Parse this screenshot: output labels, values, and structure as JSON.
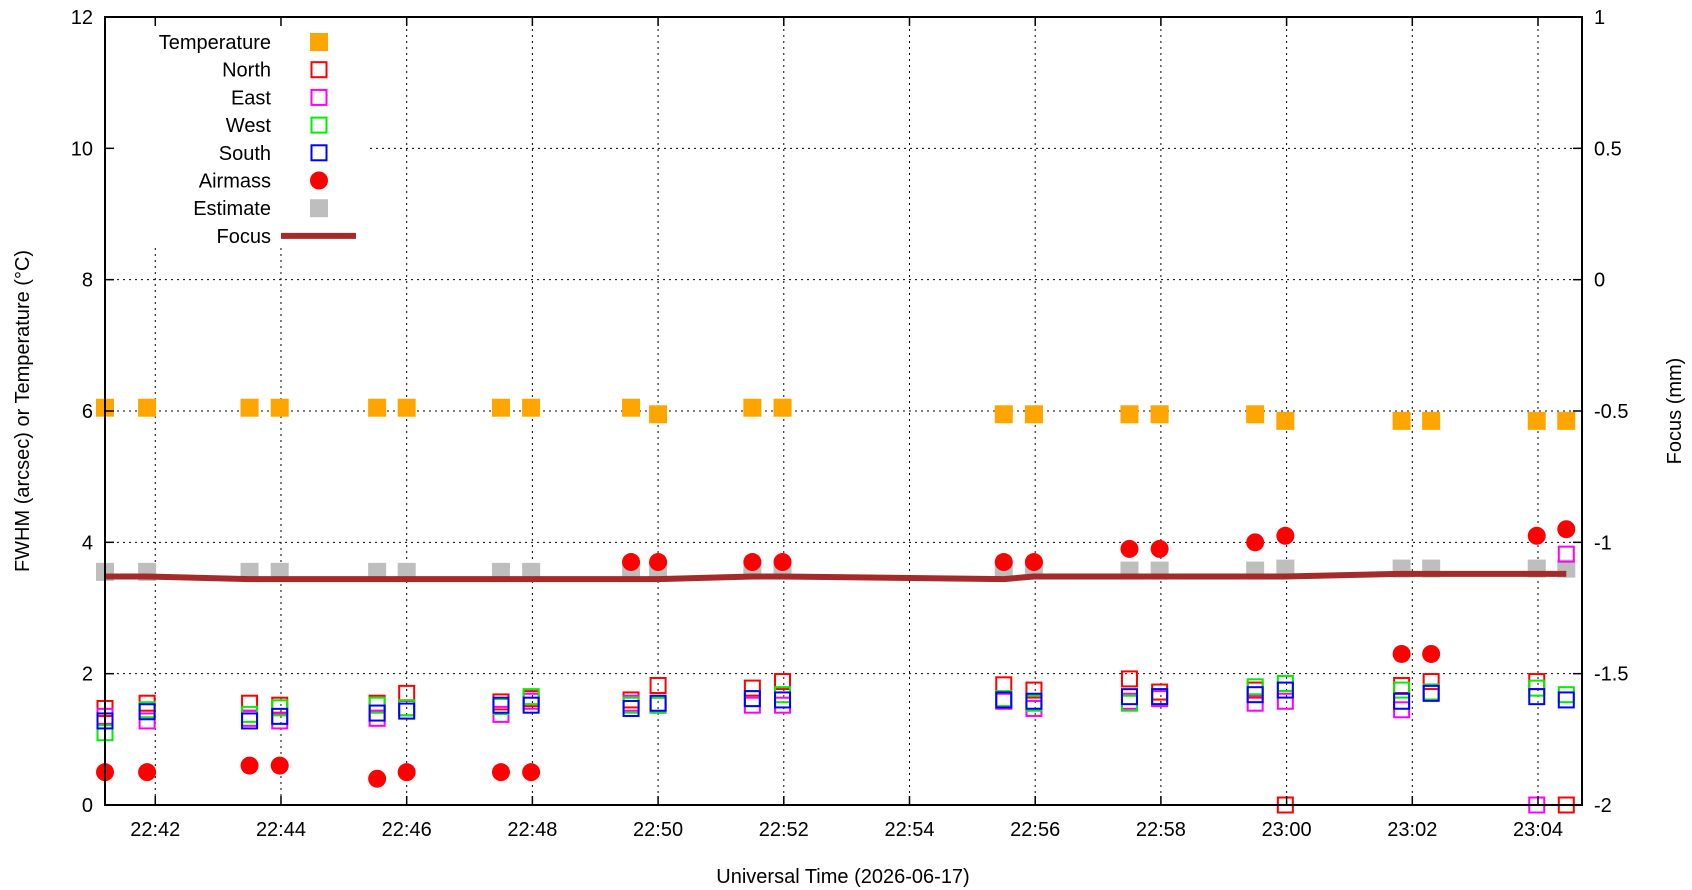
{
  "chart_data": {
    "type": "scatter",
    "xlabel": "Universal Time (2026-06-17)",
    "ylabel": "FWHM (arcsec) or Temperature (°C)",
    "y2label": "Focus (mm)",
    "xlim_minutes": [
      1361.2,
      1384.7
    ],
    "ylim": [
      0,
      12
    ],
    "y2lim": [
      -2,
      1
    ],
    "grid": true,
    "legend_position": "top-left",
    "x_ticks": [
      {
        "label": "22:42",
        "value": 1362
      },
      {
        "label": "22:44",
        "value": 1364
      },
      {
        "label": "22:46",
        "value": 1366
      },
      {
        "label": "22:48",
        "value": 1368
      },
      {
        "label": "22:50",
        "value": 1370
      },
      {
        "label": "22:52",
        "value": 1372
      },
      {
        "label": "22:54",
        "value": 1374
      },
      {
        "label": "22:56",
        "value": 1376
      },
      {
        "label": "22:58",
        "value": 1378
      },
      {
        "label": "23:00",
        "value": 1380
      },
      {
        "label": "23:02",
        "value": 1382
      },
      {
        "label": "23:04",
        "value": 1384
      }
    ],
    "y_ticks": [
      {
        "label": "0",
        "value": 0
      },
      {
        "label": "2",
        "value": 2
      },
      {
        "label": "4",
        "value": 4
      },
      {
        "label": "6",
        "value": 6
      },
      {
        "label": "8",
        "value": 8
      },
      {
        "label": "10",
        "value": 10
      },
      {
        "label": "12",
        "value": 12
      }
    ],
    "y2_ticks": [
      {
        "label": "-2",
        "value": -2
      },
      {
        "label": "-1.5",
        "value": -1.5
      },
      {
        "label": "-1",
        "value": -1
      },
      {
        "label": "-0.5",
        "value": -0.5
      },
      {
        "label": "0",
        "value": 0
      },
      {
        "label": "0.5",
        "value": 0.5
      },
      {
        "label": "1",
        "value": 1
      }
    ],
    "x_times": [
      1361.2,
      1361.87,
      1363.5,
      1363.98,
      1365.53,
      1366.0,
      1367.5,
      1367.98,
      1369.57,
      1370.0,
      1371.5,
      1371.98,
      1375.5,
      1375.98,
      1377.5,
      1377.98,
      1379.5,
      1379.98,
      1381.83,
      1382.3,
      1383.98,
      1384.45
    ],
    "series": [
      {
        "name": "Temperature",
        "marker": "filled-square",
        "color": "#FFA500",
        "axis": "y",
        "values": [
          6.05,
          6.05,
          6.05,
          6.05,
          6.05,
          6.05,
          6.05,
          6.05,
          6.05,
          5.95,
          6.05,
          6.05,
          5.95,
          5.95,
          5.95,
          5.95,
          5.95,
          5.85,
          5.85,
          5.85,
          5.85,
          5.85
        ]
      },
      {
        "name": "North",
        "marker": "open-square",
        "color": "#FF0000",
        "axis": "y",
        "values": [
          1.47,
          1.55,
          1.55,
          1.52,
          1.55,
          1.7,
          1.57,
          1.62,
          1.6,
          1.82,
          1.78,
          1.88,
          1.83,
          1.75,
          1.92,
          1.72,
          1.75,
          0.0,
          1.82,
          1.88,
          1.88,
          0.0
        ]
      },
      {
        "name": "East",
        "marker": "open-square",
        "color": "#FF00FF",
        "axis": "y",
        "values": [
          1.35,
          1.28,
          1.32,
          1.28,
          1.32,
          1.48,
          1.38,
          1.58,
          1.55,
          1.52,
          1.52,
          1.52,
          1.58,
          1.47,
          1.58,
          1.62,
          1.55,
          1.58,
          1.45,
          1.72,
          0.0,
          3.82
        ]
      },
      {
        "name": "West",
        "marker": "open-square",
        "color": "#00EE00",
        "axis": "y",
        "values": [
          1.1,
          1.45,
          1.38,
          1.48,
          1.52,
          1.48,
          1.5,
          1.65,
          1.52,
          1.52,
          1.62,
          1.68,
          1.62,
          1.55,
          1.55,
          1.65,
          1.8,
          1.85,
          1.75,
          1.72,
          1.78,
          1.68
        ]
      },
      {
        "name": "South",
        "marker": "open-square",
        "color": "#0000FF",
        "axis": "y",
        "values": [
          1.28,
          1.42,
          1.28,
          1.35,
          1.4,
          1.43,
          1.52,
          1.52,
          1.47,
          1.55,
          1.62,
          1.6,
          1.6,
          1.58,
          1.65,
          1.65,
          1.68,
          1.75,
          1.58,
          1.7,
          1.65,
          1.6
        ]
      },
      {
        "name": "Airmass",
        "marker": "filled-circle",
        "color": "#FF0000",
        "axis": "y",
        "values": [
          0.5,
          0.5,
          0.6,
          0.6,
          0.4,
          0.5,
          0.5,
          0.5,
          3.7,
          3.7,
          3.7,
          3.7,
          3.7,
          3.7,
          3.9,
          3.9,
          4.0,
          4.1,
          2.3,
          2.3,
          4.1,
          4.2
        ]
      },
      {
        "name": "Estimate",
        "marker": "filled-square",
        "color": "#BEBEBE",
        "axis": "y",
        "values": [
          3.55,
          3.55,
          3.55,
          3.55,
          3.55,
          3.55,
          3.55,
          3.55,
          3.57,
          3.57,
          3.57,
          3.57,
          3.57,
          3.6,
          3.57,
          3.57,
          3.57,
          3.6,
          3.6,
          3.6,
          3.6,
          3.6
        ]
      },
      {
        "name": "Focus",
        "marker": "line",
        "color": "#A52A2A",
        "axis": "y2",
        "values": [
          -1.13,
          -1.13,
          -1.14,
          -1.14,
          -1.14,
          -1.14,
          -1.14,
          -1.14,
          -1.14,
          -1.14,
          -1.13,
          -1.13,
          -1.14,
          -1.13,
          -1.13,
          -1.13,
          -1.13,
          -1.13,
          -1.12,
          -1.12,
          -1.12,
          -1.12
        ]
      }
    ]
  }
}
